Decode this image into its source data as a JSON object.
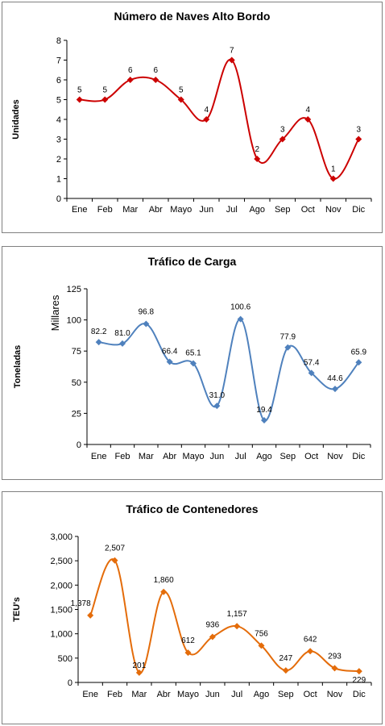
{
  "chart_data": [
    {
      "type": "line",
      "title": "Número de Naves Alto Bordo",
      "ylabel": "Unidades",
      "yunit": "",
      "categories": [
        "Ene",
        "Feb",
        "Mar",
        "Abr",
        "Mayo",
        "Jun",
        "Jul",
        "Ago",
        "Sep",
        "Oct",
        "Nov",
        "Dic"
      ],
      "values": [
        5,
        5,
        6,
        6,
        5,
        4,
        7,
        2,
        3,
        4,
        1,
        3
      ],
      "value_labels": [
        "5",
        "5",
        "6",
        "6",
        "5",
        "4",
        "7",
        "2",
        "3",
        "4",
        "1",
        "3"
      ],
      "ylim": [
        0,
        8
      ],
      "yticks": [
        "0",
        "1",
        "2",
        "3",
        "4",
        "5",
        "6",
        "7",
        "8"
      ],
      "color": "#cc0000",
      "smooth": true,
      "grid": false
    },
    {
      "type": "line",
      "title": "Tráfico de Carga",
      "ylabel": "Toneladas",
      "yunit": "Millares",
      "categories": [
        "Ene",
        "Feb",
        "Mar",
        "Abr",
        "Mayo",
        "Jun",
        "Jul",
        "Ago",
        "Sep",
        "Oct",
        "Nov",
        "Dic"
      ],
      "values": [
        82.2,
        81.0,
        96.8,
        66.4,
        65.1,
        31.0,
        100.6,
        19.4,
        77.9,
        57.4,
        44.6,
        65.9
      ],
      "value_labels": [
        "82.2",
        "81.0",
        "96.8",
        "66.4",
        "65.1",
        "31.0",
        "100.6",
        "19.4",
        "77.9",
        "57.4",
        "44.6",
        "65.9"
      ],
      "ylim": [
        0,
        125
      ],
      "yticks": [
        "0",
        "25",
        "50",
        "75",
        "100",
        "125"
      ],
      "color": "#4f81bd",
      "smooth": true,
      "grid": false
    },
    {
      "type": "line",
      "title": "Tráfico de Contenedores",
      "ylabel": "TEU's",
      "yunit": "",
      "categories": [
        "Ene",
        "Feb",
        "Mar",
        "Abr",
        "Mayo",
        "Jun",
        "Jul",
        "Ago",
        "Sep",
        "Oct",
        "Nov",
        "Dic"
      ],
      "values": [
        1378,
        2507,
        201,
        1860,
        612,
        936,
        1157,
        756,
        247,
        642,
        293,
        229
      ],
      "value_labels": [
        "1,378",
        "2,507",
        "201",
        "1,860",
        "612",
        "936",
        "1,157",
        "756",
        "247",
        "642",
        "293",
        "229"
      ],
      "ylim": [
        0,
        3000
      ],
      "yticks": [
        "0",
        "500",
        "1,000",
        "1,500",
        "2,000",
        "2,500",
        "3,000"
      ],
      "color": "#e46c0a",
      "smooth": true,
      "grid": false
    }
  ]
}
